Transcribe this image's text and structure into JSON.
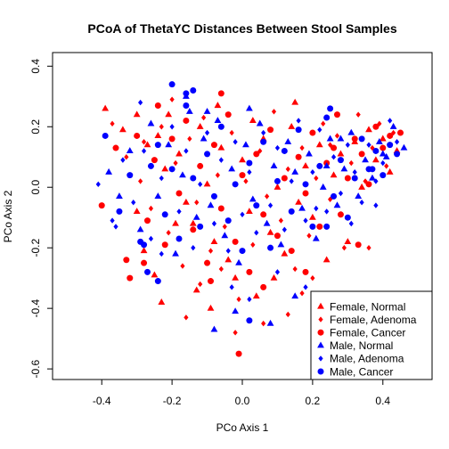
{
  "chart_data": {
    "type": "scatter",
    "title": "PCoA of ThetaYC Distances Between Stool Samples",
    "xlabel": "PCo Axis 1",
    "ylabel": "PCo Axis 2",
    "xlim": [
      -0.54,
      0.54
    ],
    "ylim": [
      -0.635,
      0.445
    ],
    "x_ticks": [
      -0.4,
      -0.2,
      0.0,
      0.2,
      0.4
    ],
    "x_tick_labels": [
      "-0.4",
      "-0.2",
      "0.0",
      "0.2",
      "0.4"
    ],
    "y_ticks": [
      -0.6,
      -0.4,
      -0.2,
      0.0,
      0.2,
      0.4
    ],
    "y_tick_labels": [
      "-0.6",
      "-0.4",
      "-0.2",
      "0.0",
      "0.2",
      "0.4"
    ],
    "grid": false,
    "legend_position": "bottom-right",
    "colors": {
      "female": "#ff0000",
      "male": "#0000ff"
    },
    "series": [
      {
        "name": "Female, Normal",
        "marker": "triangle",
        "color": "#ff0000",
        "points": [
          [
            -0.39,
            0.26
          ],
          [
            -0.34,
            0.19
          ],
          [
            -0.3,
            0.24
          ],
          [
            -0.27,
            0.14
          ],
          [
            -0.24,
            0.17
          ],
          [
            -0.22,
            0.06
          ],
          [
            -0.21,
            0.24
          ],
          [
            -0.18,
            0.11
          ],
          [
            -0.16,
            -0.05
          ],
          [
            -0.14,
            -0.12
          ],
          [
            -0.12,
            0.2
          ],
          [
            -0.1,
            0.01
          ],
          [
            -0.08,
            -0.18
          ],
          [
            -0.06,
            0.13
          ],
          [
            -0.04,
            -0.24
          ],
          [
            -0.02,
            -0.3
          ],
          [
            0.0,
            0.09
          ],
          [
            0.02,
            -0.08
          ],
          [
            0.04,
            -0.36
          ],
          [
            0.06,
            0.16
          ],
          [
            0.08,
            -0.15
          ],
          [
            0.1,
            0.0
          ],
          [
            0.12,
            -0.22
          ],
          [
            0.14,
            0.2
          ],
          [
            0.16,
            -0.05
          ],
          [
            0.18,
            0.07
          ],
          [
            0.2,
            -0.1
          ],
          [
            0.22,
            0.14
          ],
          [
            0.24,
            -0.24
          ],
          [
            0.26,
            0.04
          ],
          [
            0.28,
            0.11
          ],
          [
            0.3,
            -0.18
          ],
          [
            0.32,
            0.15
          ],
          [
            0.34,
            0.0
          ],
          [
            0.36,
            0.19
          ],
          [
            0.38,
            0.09
          ],
          [
            0.4,
            0.16
          ],
          [
            0.42,
            0.05
          ],
          [
            0.44,
            0.12
          ],
          [
            -0.28,
            -0.21
          ],
          [
            -0.25,
            -0.29
          ],
          [
            -0.19,
            -0.12
          ],
          [
            -0.13,
            -0.34
          ],
          [
            -0.09,
            -0.4
          ],
          [
            -0.23,
            -0.38
          ],
          [
            0.15,
            0.28
          ],
          [
            -0.07,
            0.27
          ],
          [
            0.03,
            0.22
          ],
          [
            -0.3,
            -0.08
          ],
          [
            0.09,
            -0.3
          ]
        ]
      },
      {
        "name": "Female, Adenoma",
        "marker": "diamond",
        "color": "#ff0000",
        "points": [
          [
            -0.37,
            0.21
          ],
          [
            -0.33,
            0.1
          ],
          [
            -0.29,
            0.02
          ],
          [
            -0.26,
            -0.07
          ],
          [
            -0.23,
            0.2
          ],
          [
            -0.21,
            -0.15
          ],
          [
            -0.19,
            0.08
          ],
          [
            -0.17,
            -0.26
          ],
          [
            -0.15,
            0.16
          ],
          [
            -0.13,
            -0.05
          ],
          [
            -0.11,
            0.23
          ],
          [
            -0.09,
            -0.21
          ],
          [
            -0.07,
            0.04
          ],
          [
            -0.05,
            -0.13
          ],
          [
            -0.03,
            0.18
          ],
          [
            -0.01,
            -0.37
          ],
          [
            0.01,
            0.02
          ],
          [
            0.03,
            -0.19
          ],
          [
            0.05,
            0.12
          ],
          [
            0.07,
            -0.03
          ],
          [
            0.09,
            0.25
          ],
          [
            0.11,
            -0.11
          ],
          [
            0.13,
            0.06
          ],
          [
            0.15,
            -0.27
          ],
          [
            0.17,
            0.13
          ],
          [
            0.19,
            -0.16
          ],
          [
            0.21,
            0.03
          ],
          [
            0.23,
            0.21
          ],
          [
            0.25,
            -0.04
          ],
          [
            0.27,
            0.17
          ],
          [
            0.29,
            -0.2
          ],
          [
            0.31,
            0.08
          ],
          [
            0.33,
            0.24
          ],
          [
            0.35,
            0.02
          ],
          [
            0.37,
            0.13
          ],
          [
            0.39,
            0.21
          ],
          [
            0.41,
            0.07
          ],
          [
            0.43,
            0.18
          ],
          [
            -0.16,
            -0.43
          ],
          [
            0.17,
            -0.35
          ],
          [
            -0.02,
            -0.48
          ],
          [
            0.2,
            -0.3
          ],
          [
            -0.12,
            -0.32
          ],
          [
            0.06,
            -0.45
          ],
          [
            -0.28,
            0.15
          ],
          [
            0.13,
            -0.42
          ],
          [
            -0.06,
            -0.27
          ],
          [
            0.25,
            0.14
          ],
          [
            -0.2,
            0.29
          ],
          [
            0.36,
            -0.2
          ]
        ]
      },
      {
        "name": "Female, Cancer",
        "marker": "circle",
        "color": "#ff0000",
        "points": [
          [
            -0.4,
            -0.06
          ],
          [
            -0.36,
            0.13
          ],
          [
            -0.33,
            -0.24
          ],
          [
            -0.3,
            0.17
          ],
          [
            -0.27,
            -0.11
          ],
          [
            -0.25,
            0.09
          ],
          [
            -0.22,
            -0.19
          ],
          [
            -0.2,
            0.16
          ],
          [
            -0.18,
            -0.02
          ],
          [
            -0.16,
            0.22
          ],
          [
            -0.14,
            -0.14
          ],
          [
            -0.12,
            0.07
          ],
          [
            -0.1,
            -0.25
          ],
          [
            -0.08,
            0.14
          ],
          [
            -0.06,
            -0.07
          ],
          [
            -0.04,
            0.24
          ],
          [
            -0.02,
            -0.18
          ],
          [
            0.0,
            0.04
          ],
          [
            0.02,
            -0.28
          ],
          [
            0.04,
            0.11
          ],
          [
            0.06,
            -0.09
          ],
          [
            0.08,
            0.19
          ],
          [
            0.1,
            -0.16
          ],
          [
            0.12,
            0.03
          ],
          [
            0.14,
            -0.21
          ],
          [
            0.16,
            0.1
          ],
          [
            0.18,
            -0.02
          ],
          [
            0.2,
            0.18
          ],
          [
            0.22,
            -0.13
          ],
          [
            0.24,
            0.08
          ],
          [
            0.26,
            0.13
          ],
          [
            0.28,
            -0.09
          ],
          [
            0.3,
            0.03
          ],
          [
            0.32,
            0.16
          ],
          [
            0.34,
            0.11
          ],
          [
            0.36,
            0.01
          ],
          [
            0.38,
            0.2
          ],
          [
            0.4,
            0.13
          ],
          [
            0.42,
            0.17
          ],
          [
            -0.32,
            -0.3
          ],
          [
            -0.28,
            -0.25
          ],
          [
            -0.01,
            -0.55
          ],
          [
            -0.06,
            0.31
          ],
          [
            0.06,
            -0.33
          ],
          [
            0.27,
            0.24
          ],
          [
            -0.24,
            0.27
          ],
          [
            0.18,
            -0.28
          ],
          [
            -0.09,
            -0.31
          ],
          [
            0.33,
            -0.19
          ],
          [
            0.45,
            0.18
          ]
        ]
      },
      {
        "name": "Male, Normal",
        "marker": "triangle",
        "color": "#0000ff",
        "points": [
          [
            -0.38,
            0.05
          ],
          [
            -0.35,
            -0.03
          ],
          [
            -0.32,
            0.12
          ],
          [
            -0.29,
            -0.14
          ],
          [
            -0.26,
            0.21
          ],
          [
            -0.24,
            -0.03
          ],
          [
            -0.21,
            0.14
          ],
          [
            -0.19,
            -0.22
          ],
          [
            -0.17,
            0.04
          ],
          [
            -0.15,
            0.25
          ],
          [
            -0.13,
            -0.1
          ],
          [
            -0.11,
            0.16
          ],
          [
            -0.09,
            -0.06
          ],
          [
            -0.07,
            0.22
          ],
          [
            -0.05,
            -0.16
          ],
          [
            -0.03,
            0.06
          ],
          [
            -0.01,
            -0.25
          ],
          [
            0.01,
            0.14
          ],
          [
            0.03,
            -0.04
          ],
          [
            0.05,
            0.21
          ],
          [
            0.07,
            -0.12
          ],
          [
            0.09,
            0.07
          ],
          [
            0.11,
            -0.19
          ],
          [
            0.13,
            0.15
          ],
          [
            0.15,
            0.05
          ],
          [
            0.17,
            -0.07
          ],
          [
            0.19,
            0.11
          ],
          [
            0.21,
            -0.17
          ],
          [
            0.23,
            0.0
          ],
          [
            0.25,
            0.16
          ],
          [
            0.27,
            -0.06
          ],
          [
            0.29,
            0.06
          ],
          [
            0.31,
            0.18
          ],
          [
            0.33,
            -0.03
          ],
          [
            0.35,
            0.09
          ],
          [
            0.37,
            0.03
          ],
          [
            0.39,
            0.15
          ],
          [
            0.41,
            0.1
          ],
          [
            0.43,
            0.2
          ],
          [
            -0.08,
            -0.47
          ],
          [
            -0.02,
            -0.41
          ],
          [
            0.08,
            -0.45
          ],
          [
            -0.1,
            0.25
          ],
          [
            0.4,
            0.11
          ],
          [
            -0.16,
            0.3
          ],
          [
            0.28,
            0.16
          ],
          [
            0.02,
            0.26
          ],
          [
            0.24,
            0.07
          ],
          [
            0.46,
            0.13
          ],
          [
            0.15,
            -0.36
          ]
        ]
      },
      {
        "name": "Male, Adenoma",
        "marker": "diamond",
        "color": "#0000ff",
        "points": [
          [
            -0.41,
            0.01
          ],
          [
            -0.37,
            -0.11
          ],
          [
            -0.34,
            0.09
          ],
          [
            -0.31,
            -0.05
          ],
          [
            -0.28,
            0.12
          ],
          [
            -0.26,
            -0.17
          ],
          [
            -0.23,
            0.03
          ],
          [
            -0.2,
            0.2
          ],
          [
            -0.18,
            -0.08
          ],
          [
            -0.16,
            0.12
          ],
          [
            -0.14,
            -0.2
          ],
          [
            -0.12,
            0.01
          ],
          [
            -0.1,
            0.18
          ],
          [
            -0.08,
            -0.12
          ],
          [
            -0.06,
            0.09
          ],
          [
            -0.04,
            -0.21
          ],
          [
            -0.02,
            0.15
          ],
          [
            0.0,
            -0.09
          ],
          [
            0.02,
            0.05
          ],
          [
            0.04,
            -0.15
          ],
          [
            0.06,
            0.18
          ],
          [
            0.08,
            -0.06
          ],
          [
            0.1,
            0.13
          ],
          [
            0.12,
            -0.14
          ],
          [
            0.14,
            0.02
          ],
          [
            0.16,
            0.22
          ],
          [
            0.18,
            -0.11
          ],
          [
            0.2,
            0.05
          ],
          [
            0.22,
            0.19
          ],
          [
            0.24,
            -0.08
          ],
          [
            0.26,
            0.1
          ],
          [
            0.28,
            -0.02
          ],
          [
            0.3,
            0.14
          ],
          [
            0.32,
            0.05
          ],
          [
            0.34,
            -0.05
          ],
          [
            0.36,
            0.14
          ],
          [
            0.38,
            0.02
          ],
          [
            0.4,
            0.08
          ],
          [
            0.42,
            0.22
          ],
          [
            0.44,
            0.15
          ],
          [
            -0.36,
            -0.13
          ],
          [
            -0.03,
            -0.33
          ],
          [
            0.02,
            -0.37
          ],
          [
            0.1,
            -0.28
          ],
          [
            0.21,
            -0.07
          ],
          [
            -0.29,
            0.28
          ],
          [
            0.31,
            -0.12
          ],
          [
            0.38,
            -0.06
          ],
          [
            -0.23,
            -0.22
          ],
          [
            0.18,
            -0.33
          ]
        ]
      },
      {
        "name": "Male, Cancer",
        "marker": "circle",
        "color": "#0000ff",
        "points": [
          [
            -0.39,
            0.17
          ],
          [
            -0.35,
            -0.08
          ],
          [
            -0.32,
            0.04
          ],
          [
            -0.29,
            -0.18
          ],
          [
            -0.26,
            0.07
          ],
          [
            -0.24,
            0.14
          ],
          [
            -0.22,
            -0.09
          ],
          [
            -0.2,
            0.06
          ],
          [
            -0.18,
            -0.17
          ],
          [
            -0.16,
            0.27
          ],
          [
            -0.14,
            0.03
          ],
          [
            -0.12,
            -0.13
          ],
          [
            -0.1,
            0.11
          ],
          [
            -0.08,
            -0.03
          ],
          [
            -0.06,
            0.2
          ],
          [
            -0.04,
            -0.11
          ],
          [
            -0.02,
            0.01
          ],
          [
            0.0,
            -0.21
          ],
          [
            0.02,
            0.08
          ],
          [
            0.04,
            -0.06
          ],
          [
            0.06,
            0.15
          ],
          [
            0.08,
            -0.2
          ],
          [
            0.1,
            0.02
          ],
          [
            0.12,
            0.12
          ],
          [
            0.14,
            -0.08
          ],
          [
            0.16,
            0.19
          ],
          [
            0.18,
            0.01
          ],
          [
            0.2,
            -0.13
          ],
          [
            0.22,
            0.07
          ],
          [
            0.24,
            0.23
          ],
          [
            0.26,
            -0.03
          ],
          [
            0.28,
            0.09
          ],
          [
            0.3,
            -0.1
          ],
          [
            0.32,
            0.03
          ],
          [
            0.34,
            0.16
          ],
          [
            0.36,
            0.06
          ],
          [
            0.38,
            0.12
          ],
          [
            0.4,
            0.04
          ],
          [
            0.42,
            0.14
          ],
          [
            0.44,
            0.11
          ],
          [
            -0.27,
            -0.28
          ],
          [
            -0.24,
            -0.31
          ],
          [
            0.02,
            -0.44
          ],
          [
            -0.2,
            0.34
          ],
          [
            -0.16,
            0.31
          ],
          [
            -0.14,
            0.32
          ],
          [
            0.37,
            0.06
          ],
          [
            0.25,
            0.26
          ],
          [
            0.24,
            -0.13
          ],
          [
            -0.28,
            -0.19
          ]
        ]
      }
    ]
  }
}
